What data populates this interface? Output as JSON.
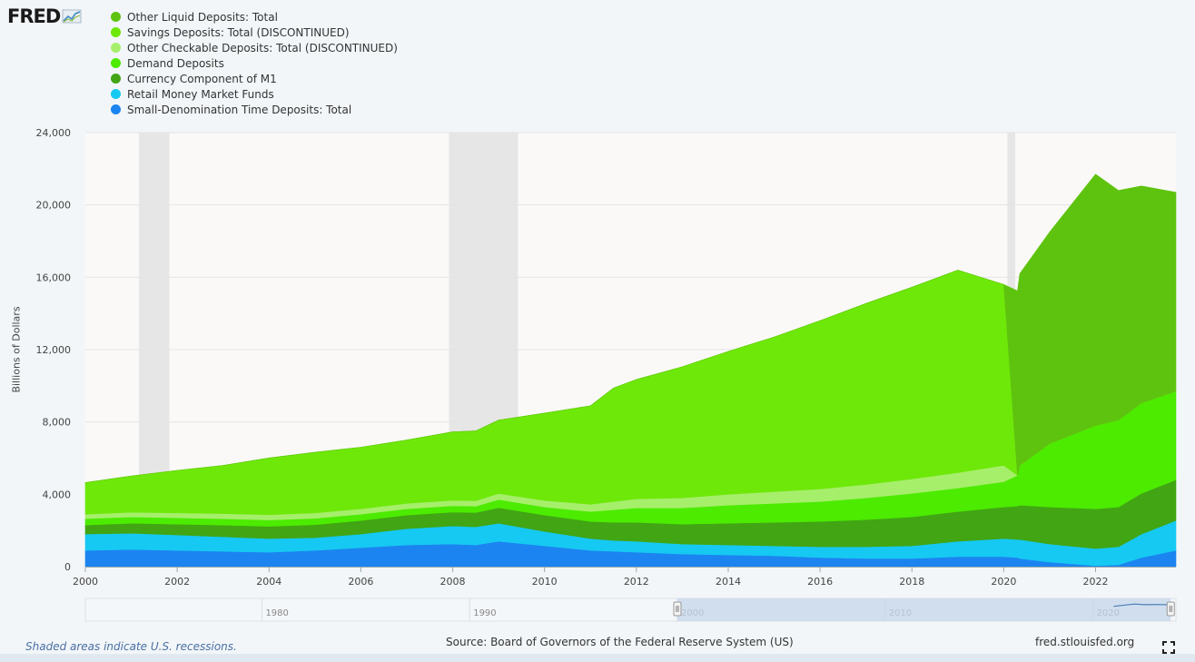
{
  "logo": {
    "text": "FRED",
    "icon": "line-chart-icon"
  },
  "recession_note": "Shaded areas indicate U.S. recessions.",
  "source": "Source: Board of Governors of the Federal Reserve System (US)",
  "site": "fred.stlouisfed.org",
  "fullscreen_icon": "fullscreen-icon",
  "chart_data": {
    "type": "area",
    "stacked": true,
    "ylabel": "Billions of Dollars",
    "ylim": [
      0,
      24000
    ],
    "yticks": [
      "0",
      "4,000",
      "8,000",
      "12,000",
      "16,000",
      "20,000",
      "24,000"
    ],
    "ytick_values": [
      0,
      4000,
      8000,
      12000,
      16000,
      20000,
      24000
    ],
    "xlim": [
      2000,
      2023.75
    ],
    "xticks": [
      "2000",
      "2002",
      "2004",
      "2006",
      "2008",
      "2010",
      "2012",
      "2014",
      "2016",
      "2018",
      "2020",
      "2022"
    ],
    "xtick_values": [
      2000,
      2002,
      2004,
      2006,
      2008,
      2010,
      2012,
      2014,
      2016,
      2018,
      2020,
      2022
    ],
    "grid": true,
    "legend_position": "top-left",
    "recessions": [
      [
        2001.17,
        2001.83
      ],
      [
        2007.92,
        2009.42
      ],
      [
        2020.08,
        2020.25
      ]
    ],
    "x": [
      2000,
      2001,
      2002,
      2003,
      2004,
      2005,
      2006,
      2007,
      2008,
      2008.5,
      2009,
      2010,
      2011,
      2011.5,
      2012,
      2013,
      2014,
      2015,
      2016,
      2017,
      2018,
      2019,
      2020,
      2020.3,
      2020.35,
      2021,
      2022,
      2022.5,
      2023,
      2023.75
    ],
    "series": [
      {
        "name": "Small-Denomination Time Deposits: Total",
        "color": "#1c84f0",
        "values": [
          900,
          950,
          900,
          850,
          800,
          900,
          1050,
          1200,
          1250,
          1200,
          1400,
          1150,
          900,
          850,
          800,
          700,
          650,
          600,
          500,
          450,
          450,
          550,
          550,
          500,
          450,
          250,
          50,
          100,
          500,
          900
        ]
      },
      {
        "name": "Retail Money Market Funds",
        "color": "#16c9f2",
        "values": [
          900,
          900,
          850,
          800,
          750,
          700,
          750,
          900,
          1000,
          1000,
          1000,
          800,
          650,
          600,
          600,
          550,
          550,
          550,
          600,
          650,
          700,
          850,
          1000,
          1000,
          1050,
          1000,
          950,
          1000,
          1300,
          1650
        ]
      },
      {
        "name": "Currency Component of M1",
        "color": "#41a514",
        "values": [
          500,
          550,
          600,
          650,
          680,
          720,
          750,
          750,
          770,
          790,
          860,
          900,
          950,
          1000,
          1050,
          1100,
          1200,
          1300,
          1400,
          1500,
          1600,
          1650,
          1750,
          1850,
          1900,
          2050,
          2200,
          2200,
          2250,
          2250
        ]
      },
      {
        "name": "Demand Deposits",
        "color": "#4ceb00",
        "values": [
          350,
          350,
          350,
          350,
          350,
          350,
          350,
          350,
          350,
          350,
          450,
          450,
          550,
          700,
          800,
          900,
          1000,
          1050,
          1100,
          1200,
          1300,
          1300,
          1400,
          1700,
          2200,
          3500,
          4600,
          4800,
          5000,
          4900
        ]
      },
      {
        "name": "Other Checkable Deposits: Total (DISCONTINUED)",
        "color": "#a6ef6b",
        "values": [
          250,
          260,
          270,
          280,
          290,
          300,
          300,
          300,
          300,
          300,
          330,
          360,
          400,
          450,
          500,
          550,
          600,
          650,
          700,
          750,
          800,
          850,
          900,
          0,
          0,
          0,
          0,
          0,
          0,
          0
        ]
      },
      {
        "name": "Savings Deposits: Total (DISCONTINUED)",
        "color": "#6ee809",
        "values": [
          1750,
          2000,
          2350,
          2670,
          3140,
          3350,
          3400,
          3500,
          3780,
          3860,
          4060,
          4830,
          5440,
          6270,
          6600,
          7250,
          7900,
          8550,
          9300,
          10000,
          10600,
          11200,
          10000,
          0,
          0,
          0,
          0,
          0,
          0,
          0
        ]
      },
      {
        "name": "Other Liquid Deposits: Total",
        "color": "#5ec30f",
        "values": [
          0,
          0,
          0,
          0,
          0,
          0,
          0,
          0,
          0,
          0,
          0,
          0,
          0,
          0,
          0,
          0,
          0,
          0,
          0,
          0,
          0,
          0,
          0,
          10200,
          10600,
          11700,
          13900,
          12700,
          12000,
          11000
        ]
      }
    ],
    "navigator": {
      "ticks": [
        "1980",
        "1990",
        "2000",
        "2010",
        "2020"
      ],
      "tick_values": [
        1980,
        1990,
        2000,
        2010,
        2020
      ],
      "range": [
        1971.5,
        2024
      ],
      "selected": [
        2000,
        2023.75
      ]
    }
  }
}
